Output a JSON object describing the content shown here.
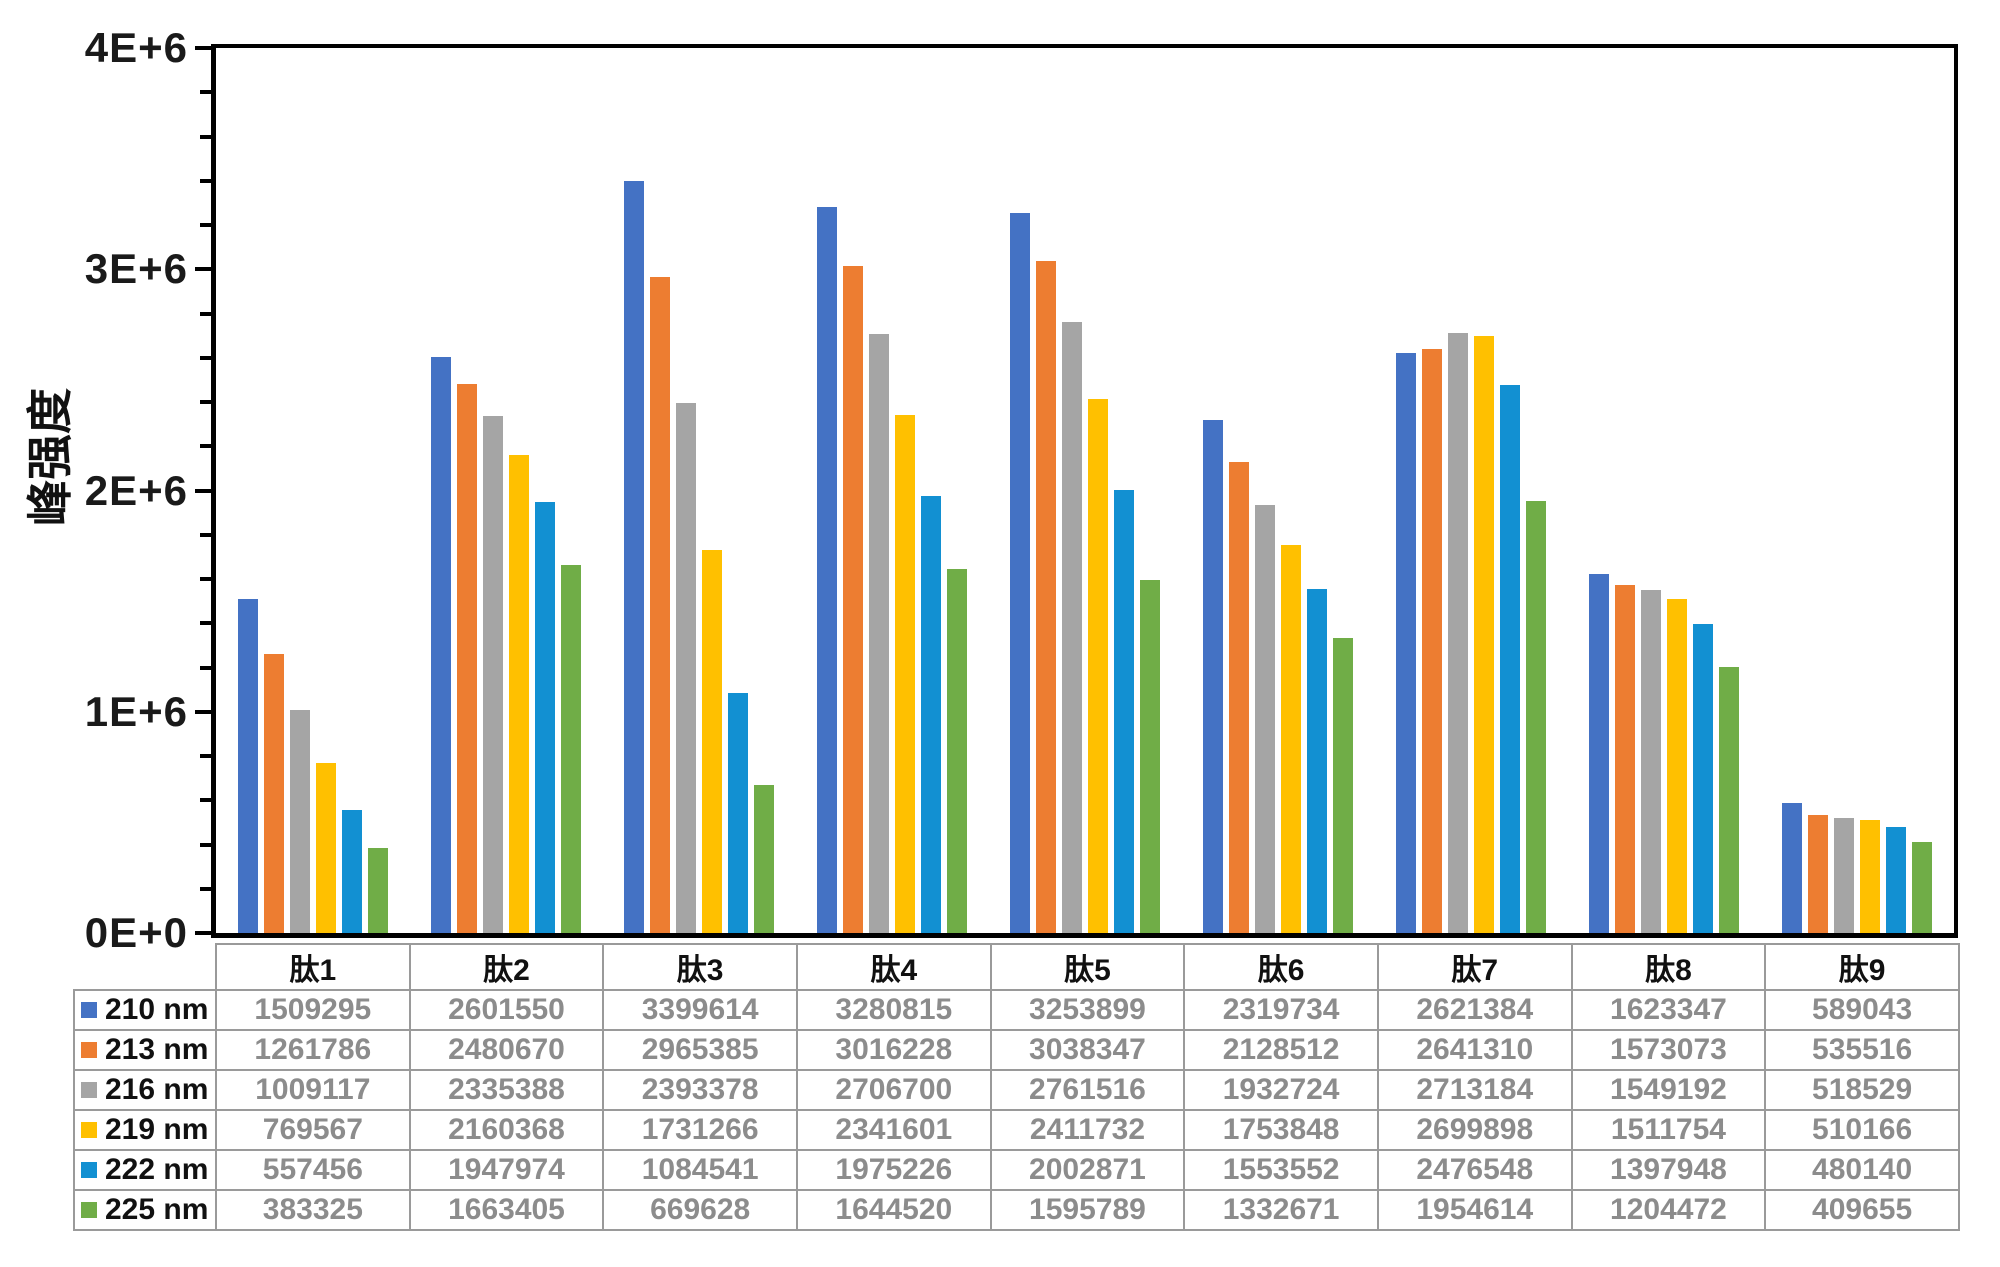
{
  "chart_data": {
    "type": "bar",
    "title": "",
    "ylabel": "峰强度",
    "categories": [
      "肽1",
      "肽2",
      "肽3",
      "肽4",
      "肽5",
      "肽6",
      "肽7",
      "肽8",
      "肽9"
    ],
    "series": [
      {
        "name": "210 nm",
        "color": "#4472C4",
        "values": [
          1509295,
          2601550,
          3399614,
          3280815,
          3253899,
          2319734,
          2621384,
          1623347,
          589043
        ]
      },
      {
        "name": "213 nm",
        "color": "#ED7D31",
        "values": [
          1261786,
          2480670,
          2965385,
          3016228,
          3038347,
          2128512,
          2641310,
          1573073,
          535516
        ]
      },
      {
        "name": "216 nm",
        "color": "#A5A5A5",
        "values": [
          1009117,
          2335388,
          2393378,
          2706700,
          2761516,
          1932724,
          2713184,
          1549192,
          518529
        ]
      },
      {
        "name": "219 nm",
        "color": "#FFC000",
        "values": [
          769567,
          2160368,
          1731266,
          2341601,
          2411732,
          1753848,
          2699898,
          1511754,
          510166
        ]
      },
      {
        "name": "222 nm",
        "color": "#1290D2",
        "values": [
          557456,
          1947974,
          1084541,
          1975226,
          2002871,
          1553552,
          2476548,
          1397948,
          480140
        ]
      },
      {
        "name": "225 nm",
        "color": "#70AD47",
        "values": [
          383325,
          1663405,
          669628,
          1644520,
          1595789,
          1332671,
          1954614,
          1204472,
          409655
        ]
      }
    ],
    "ylim": [
      0,
      4000000
    ],
    "yticks": [
      {
        "value": 0,
        "label": "0E+0"
      },
      {
        "value": 1000000,
        "label": "1E+6"
      },
      {
        "value": 2000000,
        "label": "2E+6"
      },
      {
        "value": 3000000,
        "label": "3E+6"
      },
      {
        "value": 4000000,
        "label": "4E+6"
      }
    ],
    "minor_tick_step": 200000,
    "grid": false,
    "legend_position": "table-left",
    "data_table_shown": true
  },
  "styles": {
    "axis_color": "#000000",
    "table_border_color": "#9A9A9A",
    "table_value_color": "#8C8C8C",
    "text_color": "#111111",
    "background": "#FFFFFF"
  }
}
